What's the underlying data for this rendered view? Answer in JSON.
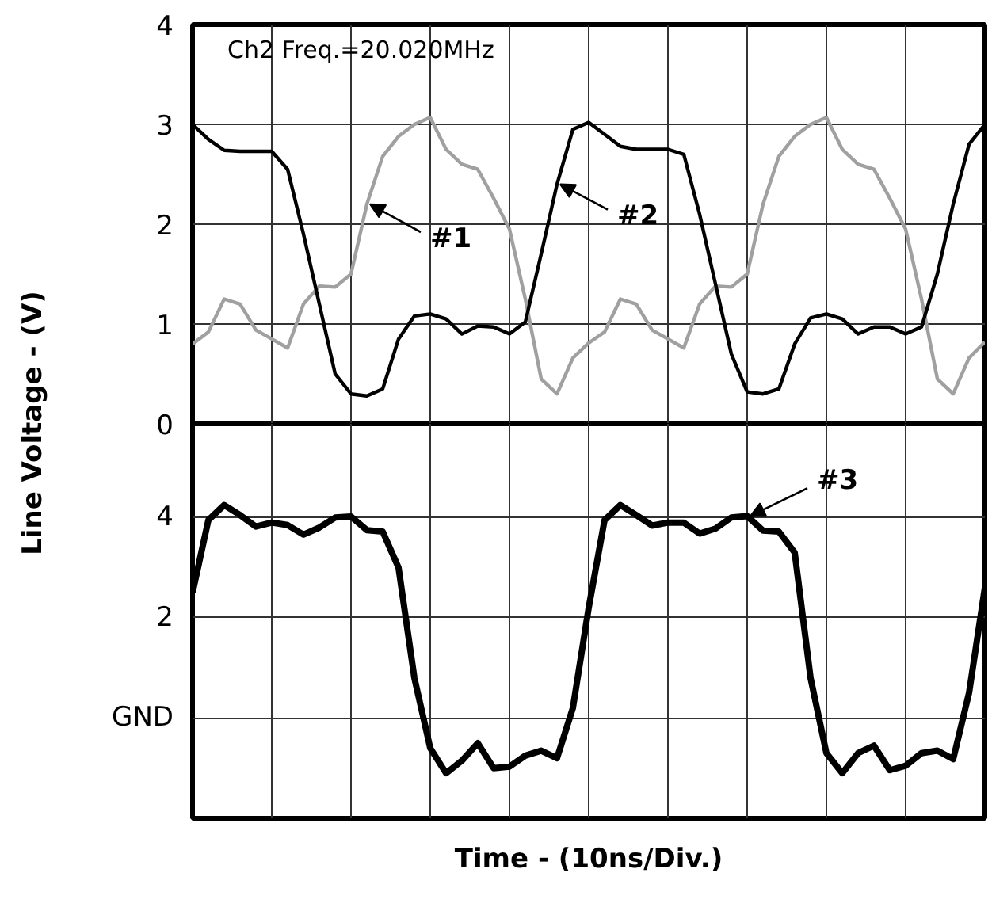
{
  "chart_data": [
    {
      "type": "line",
      "ylabel": "Line Voltage - (V)",
      "categories": [
        null,
        null,
        null,
        null,
        null,
        null,
        null,
        null,
        null,
        null,
        null,
        null,
        null,
        null,
        null,
        null,
        null,
        null,
        null,
        null,
        null,
        null,
        null,
        null,
        null,
        null,
        null,
        null,
        null,
        null,
        null,
        null,
        null,
        null,
        null,
        null,
        null,
        null,
        null,
        null,
        null,
        null,
        null,
        null,
        null,
        null,
        null,
        null,
        null,
        null,
        null
      ],
      "ylim": [
        0,
        4
      ],
      "yticks": [
        0,
        1,
        2,
        3,
        4
      ],
      "tick_labels": "y",
      "grid": true,
      "line_style": "solid",
      "annotations": [
        "Ch2 Freq.=20.020MHz"
      ],
      "series": [
        {
          "name": "#1",
          "color": "#a0a0a0",
          "values": [
            0.8,
            0.92,
            1.25,
            1.2,
            0.94,
            0.85,
            0.76,
            1.2,
            1.38,
            1.37,
            1.5,
            2.2,
            2.68,
            2.88,
            3.0,
            3.07,
            2.75,
            2.6,
            2.55,
            2.26,
            1.95,
            1.25,
            0.45,
            0.3,
            0.66,
            0.81,
            0.92,
            1.25,
            1.2,
            0.94,
            0.85,
            0.76,
            1.2,
            1.38,
            1.37,
            1.5,
            2.2,
            2.68,
            2.88,
            3.0,
            3.07,
            2.75,
            2.6,
            2.55,
            2.26,
            1.95,
            1.25,
            0.45,
            0.3,
            0.66,
            0.82
          ]
        },
        {
          "name": "#2",
          "color": "#000000",
          "values": [
            3.0,
            2.85,
            2.74,
            2.73,
            2.73,
            2.73,
            2.55,
            1.9,
            1.2,
            0.5,
            0.3,
            0.28,
            0.35,
            0.85,
            1.08,
            1.1,
            1.05,
            0.9,
            0.98,
            0.97,
            0.9,
            1.02,
            1.7,
            2.4,
            2.95,
            3.02,
            2.9,
            2.78,
            2.75,
            2.75,
            2.75,
            2.7,
            2.1,
            1.4,
            0.7,
            0.32,
            0.3,
            0.35,
            0.8,
            1.06,
            1.1,
            1.05,
            0.9,
            0.97,
            0.97,
            0.9,
            0.97,
            1.5,
            2.2,
            2.8,
            3.0
          ]
        }
      ]
    },
    {
      "type": "line",
      "xlabel": "Time - (10ns/Div.)",
      "categories": [
        null,
        null,
        null,
        null,
        null,
        null,
        null,
        null,
        null,
        null,
        null,
        null,
        null,
        null,
        null,
        null,
        null,
        null,
        null,
        null,
        null,
        null,
        null,
        null,
        null,
        null,
        null,
        null,
        null,
        null,
        null,
        null,
        null,
        null,
        null,
        null,
        null,
        null,
        null,
        null,
        null,
        null,
        null,
        null,
        null,
        null,
        null,
        null,
        null,
        null,
        null
      ],
      "ylim": [
        -2,
        5.87
      ],
      "yticks": [
        4,
        2,
        {
          "value": 0,
          "label": "GND"
        }
      ],
      "tick_labels": "y",
      "grid": true,
      "line_style": "solid",
      "series": [
        {
          "name": "#3",
          "color": "#000000",
          "values": [
            2.5,
            3.95,
            4.25,
            4.05,
            3.82,
            3.9,
            3.85,
            3.66,
            3.8,
            4.0,
            4.02,
            3.75,
            3.72,
            3.0,
            0.8,
            -0.6,
            -1.1,
            -0.85,
            -0.5,
            -1.0,
            -0.97,
            -0.75,
            -0.65,
            -0.8,
            0.2,
            2.2,
            3.95,
            4.25,
            4.05,
            3.84,
            3.9,
            3.9,
            3.68,
            3.78,
            4.0,
            4.03,
            3.74,
            3.72,
            3.3,
            0.8,
            -0.7,
            -1.1,
            -0.7,
            -0.55,
            -1.04,
            -0.95,
            -0.7,
            -0.65,
            -0.82,
            0.5,
            2.6
          ]
        }
      ]
    }
  ]
}
